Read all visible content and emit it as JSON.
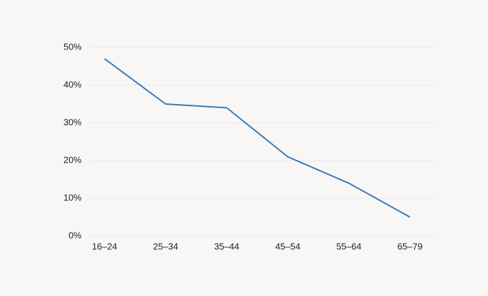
{
  "chart_data": {
    "type": "line",
    "categories": [
      "16–24",
      "25–34",
      "35–44",
      "45–54",
      "55–64",
      "65–79"
    ],
    "series": [
      {
        "color": "#3b78b9",
        "values": [
          47,
          35,
          34,
          21,
          14,
          5
        ]
      }
    ],
    "ylim": [
      0,
      50
    ],
    "yticks": [
      {
        "value": 0,
        "label": "0%"
      },
      {
        "value": 10,
        "label": "10%"
      },
      {
        "value": 20,
        "label": "20%"
      },
      {
        "value": 30,
        "label": "30%"
      },
      {
        "value": 40,
        "label": "40%"
      },
      {
        "value": 50,
        "label": "50%"
      }
    ],
    "grid": true
  }
}
